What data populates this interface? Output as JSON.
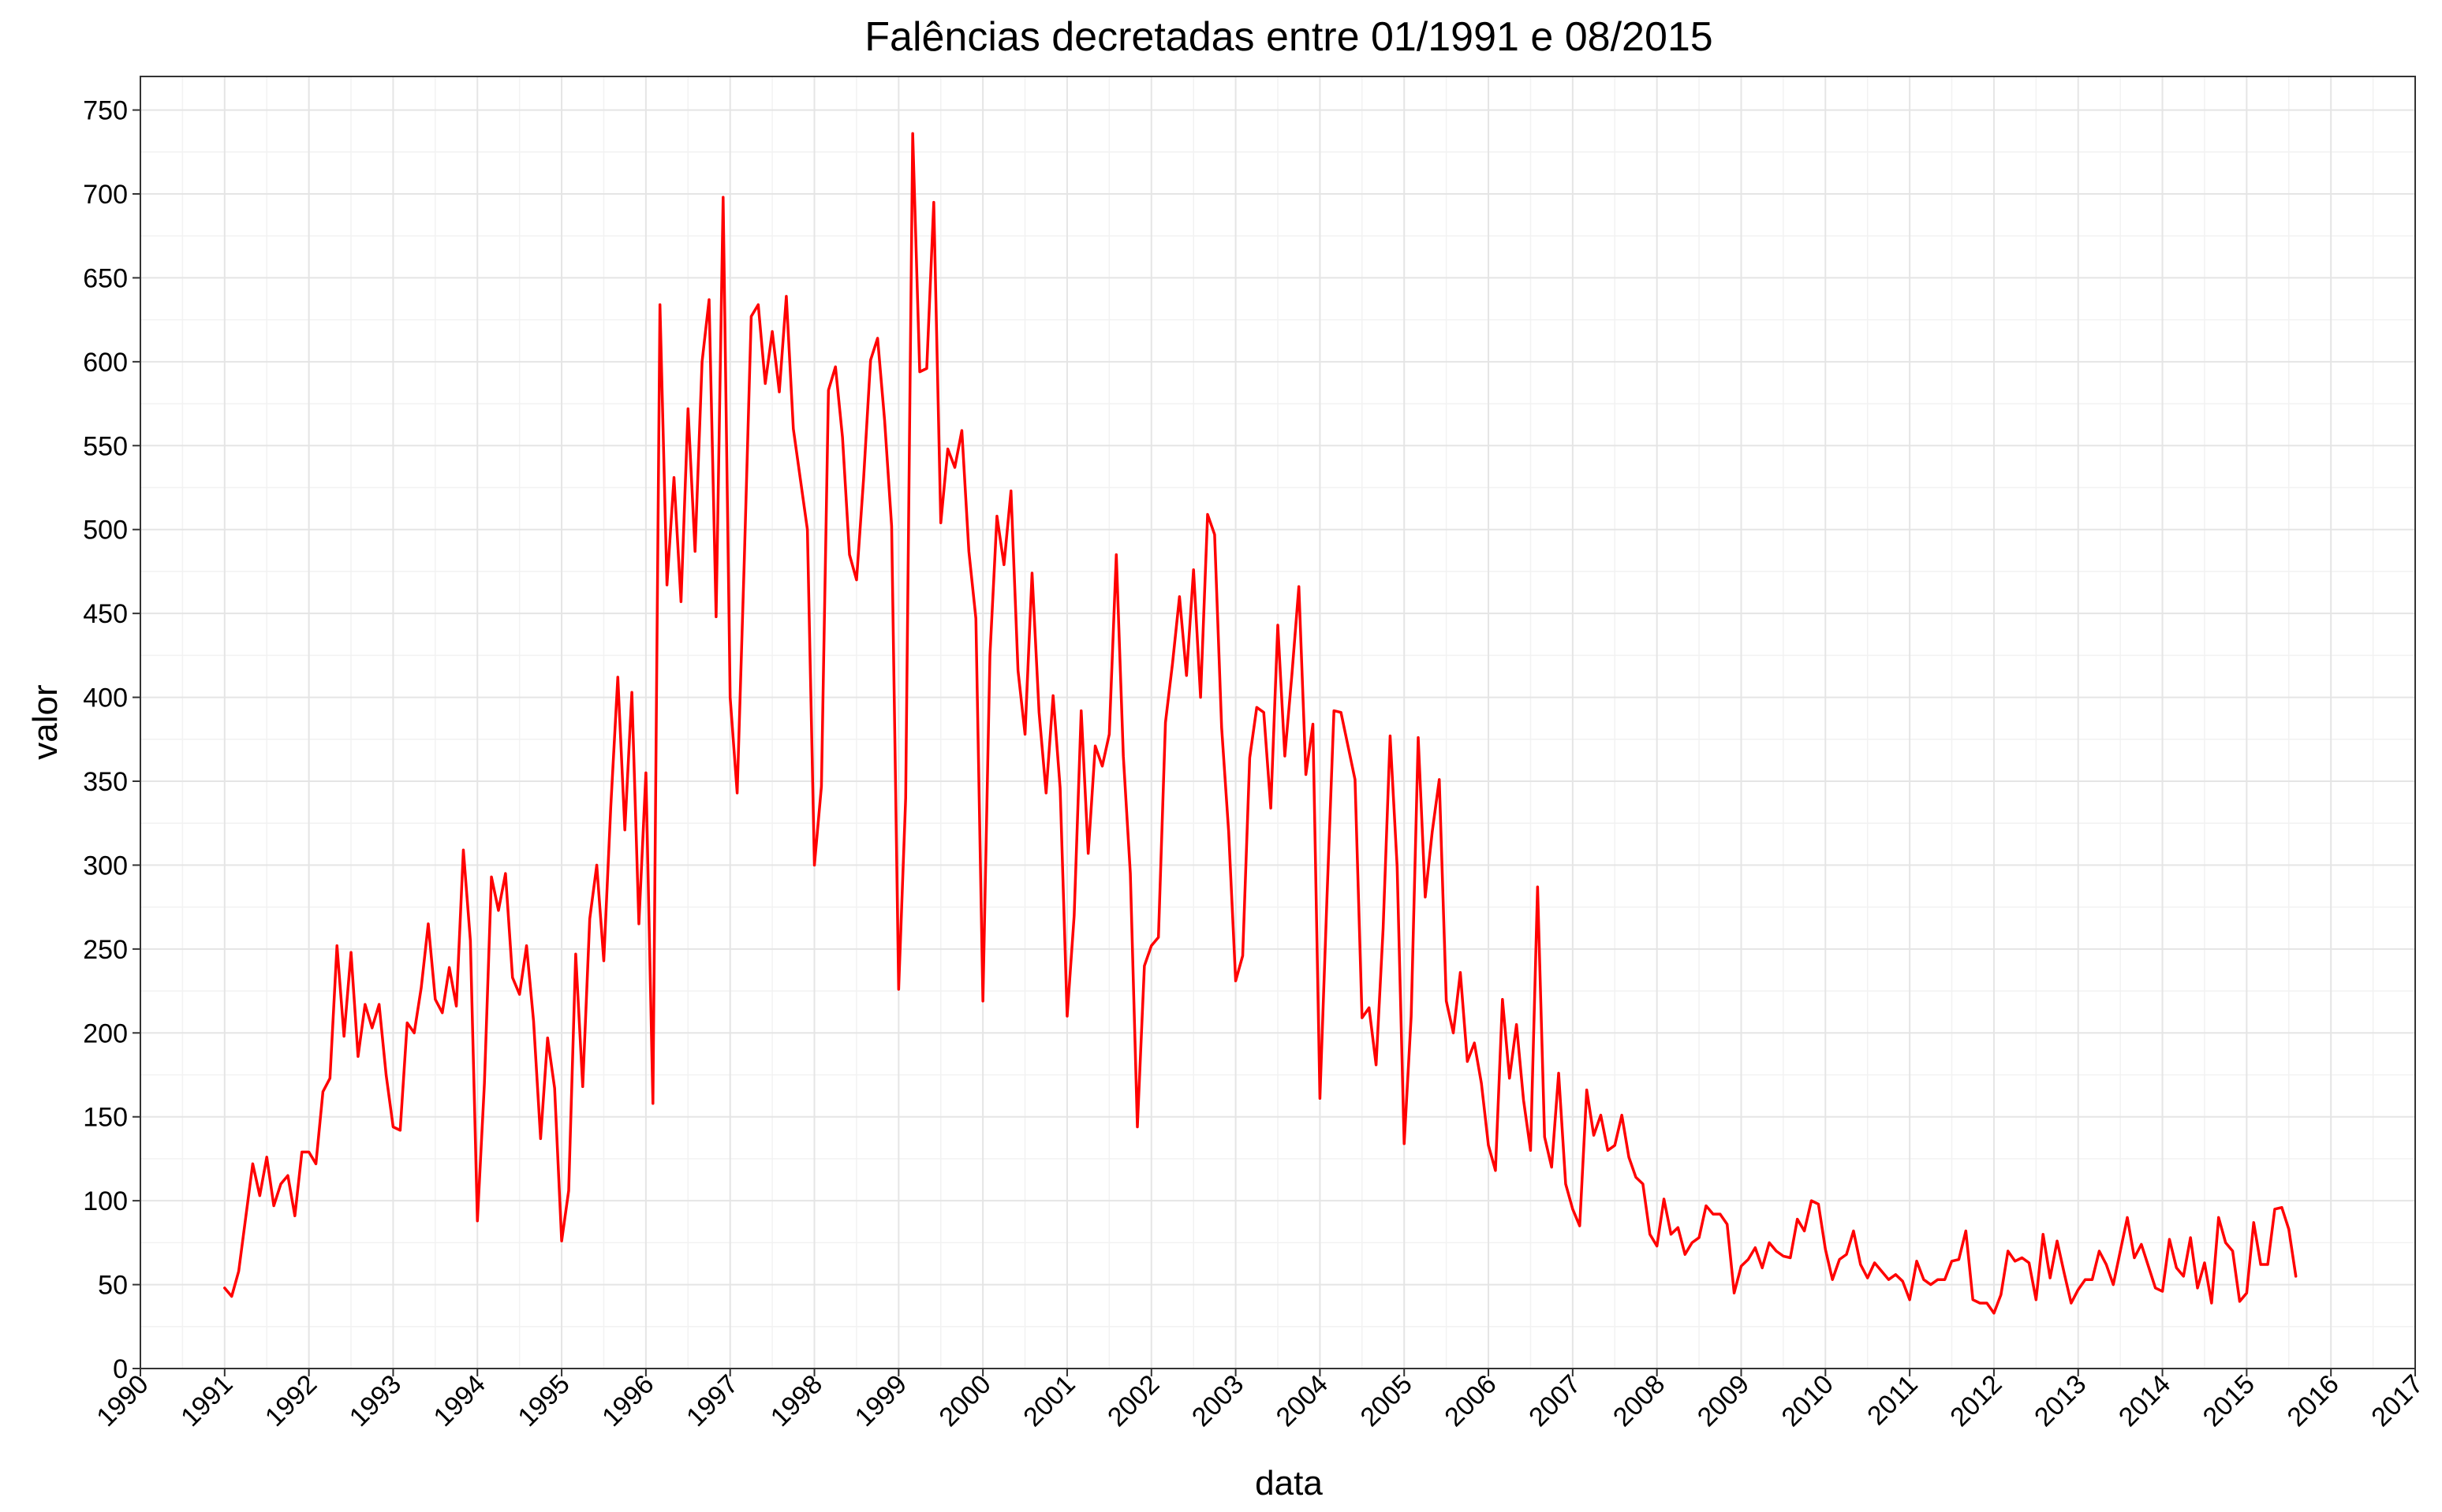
{
  "chart_data": {
    "type": "line",
    "title": "Falências decretadas entre 01/1991 e 08/2015",
    "xlabel": "data",
    "ylabel": "valor",
    "xlim": [
      "1990-01",
      "2017-01"
    ],
    "ylim": [
      0,
      770
    ],
    "x_ticks": [
      "1990",
      "1991",
      "1992",
      "1993",
      "1994",
      "1995",
      "1996",
      "1997",
      "1998",
      "1999",
      "2000",
      "2001",
      "2002",
      "2003",
      "2004",
      "2005",
      "2006",
      "2007",
      "2008",
      "2009",
      "2010",
      "2011",
      "2012",
      "2013",
      "2014",
      "2015",
      "2016",
      "2017"
    ],
    "y_ticks": [
      0,
      50,
      100,
      150,
      200,
      250,
      300,
      350,
      400,
      450,
      500,
      550,
      600,
      650,
      700,
      750
    ],
    "grid": true,
    "legend": "none",
    "series": [
      {
        "color": "#ff0000",
        "x_start": "1991-01",
        "x_end": "2015-08",
        "frequency": "monthly",
        "values": [
          48,
          43,
          58,
          90,
          122,
          103,
          126,
          97,
          110,
          115,
          91,
          129,
          129,
          122,
          165,
          173,
          252,
          198,
          248,
          186,
          217,
          203,
          217,
          175,
          144,
          142,
          206,
          200,
          227,
          265,
          220,
          212,
          239,
          216,
          309,
          255,
          88,
          170,
          293,
          273,
          295,
          233,
          223,
          252,
          207,
          137,
          197,
          167,
          76,
          106,
          247,
          168,
          268,
          300,
          243,
          335,
          412,
          321,
          403,
          265,
          355,
          158,
          634,
          467,
          531,
          457,
          572,
          487,
          600,
          637,
          448,
          698,
          400,
          343,
          480,
          627,
          634,
          587,
          618,
          582,
          639,
          560,
          530,
          500,
          300,
          347,
          583,
          597,
          555,
          485,
          470,
          530,
          601,
          614,
          565,
          502,
          226,
          340,
          736,
          594,
          596,
          695,
          504,
          548,
          537,
          559,
          487,
          447,
          219,
          425,
          508,
          479,
          523,
          416,
          378,
          474,
          391,
          343,
          401,
          346,
          210,
          270,
          392,
          307,
          371,
          359,
          378,
          485,
          365,
          295,
          144,
          240,
          252,
          257,
          385,
          420,
          460,
          413,
          476,
          400,
          509,
          497,
          382,
          320,
          231,
          246,
          364,
          394,
          391,
          334,
          443,
          365,
          413,
          466,
          354,
          384,
          161,
          280,
          392,
          391,
          371,
          351,
          209,
          215,
          181,
          262,
          377,
          299,
          134,
          210,
          376,
          281,
          320,
          351,
          219,
          200,
          236,
          183,
          194,
          170,
          133,
          118,
          220,
          173,
          205,
          160,
          130,
          287,
          138,
          120,
          176,
          110,
          95,
          85,
          166,
          139,
          151,
          130,
          133,
          151,
          126,
          114,
          110,
          80,
          73,
          101,
          80,
          84,
          68,
          75,
          78,
          97,
          92,
          92,
          86,
          45,
          61,
          65,
          72,
          60,
          75,
          70,
          67,
          66,
          89,
          82,
          100,
          98,
          71,
          53,
          65,
          68,
          82,
          62,
          54,
          63,
          58,
          53,
          56,
          52,
          41,
          64,
          53,
          50,
          53,
          53,
          64,
          65,
          82,
          41,
          39,
          39,
          33,
          44,
          70,
          64,
          66,
          63,
          41,
          80,
          54,
          76,
          57,
          39,
          47,
          53,
          53,
          70,
          62,
          50,
          70,
          90,
          66,
          74,
          61,
          48,
          46,
          77,
          60,
          55,
          78,
          48,
          63,
          39,
          90,
          75,
          70,
          40,
          45,
          87,
          62,
          62,
          95,
          96,
          83,
          55
        ]
      }
    ]
  }
}
